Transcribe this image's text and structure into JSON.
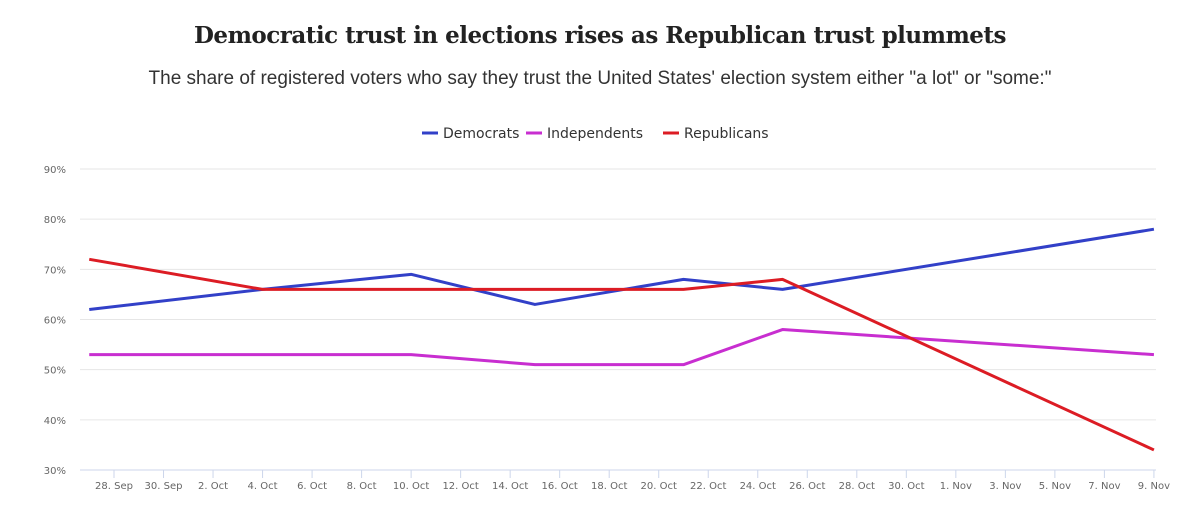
{
  "chart_data": {
    "type": "line",
    "title": "Democratic trust in elections rises as Republican trust plummets",
    "subtitle": "The share of registered voters who say they trust the United States' election system either \"a lot\" or \"some:\"",
    "xlabel": "",
    "ylabel": "",
    "ylim": [
      30,
      90
    ],
    "y_ticks": [
      "30%",
      "40%",
      "50%",
      "60%",
      "70%",
      "80%",
      "90%"
    ],
    "y_tick_values": [
      30,
      40,
      50,
      60,
      70,
      80,
      90
    ],
    "x_ticks": [
      "28. Sep",
      "30. Sep",
      "2. Oct",
      "4. Oct",
      "6. Oct",
      "8. Oct",
      "10. Oct",
      "12. Oct",
      "14. Oct",
      "16. Oct",
      "18. Oct",
      "20. Oct",
      "22. Oct",
      "24. Oct",
      "26. Oct",
      "28. Oct",
      "30. Oct",
      "1. Nov",
      "3. Nov",
      "5. Nov",
      "7. Nov",
      "9. Nov"
    ],
    "x_tick_dates": [
      "2020-09-28",
      "2020-09-30",
      "2020-10-02",
      "2020-10-04",
      "2020-10-06",
      "2020-10-08",
      "2020-10-10",
      "2020-10-12",
      "2020-10-14",
      "2020-10-16",
      "2020-10-18",
      "2020-10-20",
      "2020-10-22",
      "2020-10-24",
      "2020-10-26",
      "2020-10-28",
      "2020-10-30",
      "2020-11-01",
      "2020-11-03",
      "2020-11-05",
      "2020-11-07",
      "2020-11-09"
    ],
    "grid": true,
    "legend_placement": "top-center",
    "x": [
      "2020-09-27",
      "2020-10-04",
      "2020-10-10",
      "2020-10-15",
      "2020-10-21",
      "2020-10-25",
      "2020-11-09"
    ],
    "series": [
      {
        "name": "Democrats",
        "color": "#3240c8",
        "values": [
          62,
          66,
          69,
          63,
          68,
          66,
          78
        ]
      },
      {
        "name": "Independents",
        "color": "#c82ed0",
        "values": [
          53,
          53,
          53,
          51,
          51,
          58,
          53
        ]
      },
      {
        "name": "Republicans",
        "color": "#dc1c24",
        "values": [
          72,
          66,
          66,
          66,
          66,
          68,
          34
        ]
      }
    ]
  }
}
